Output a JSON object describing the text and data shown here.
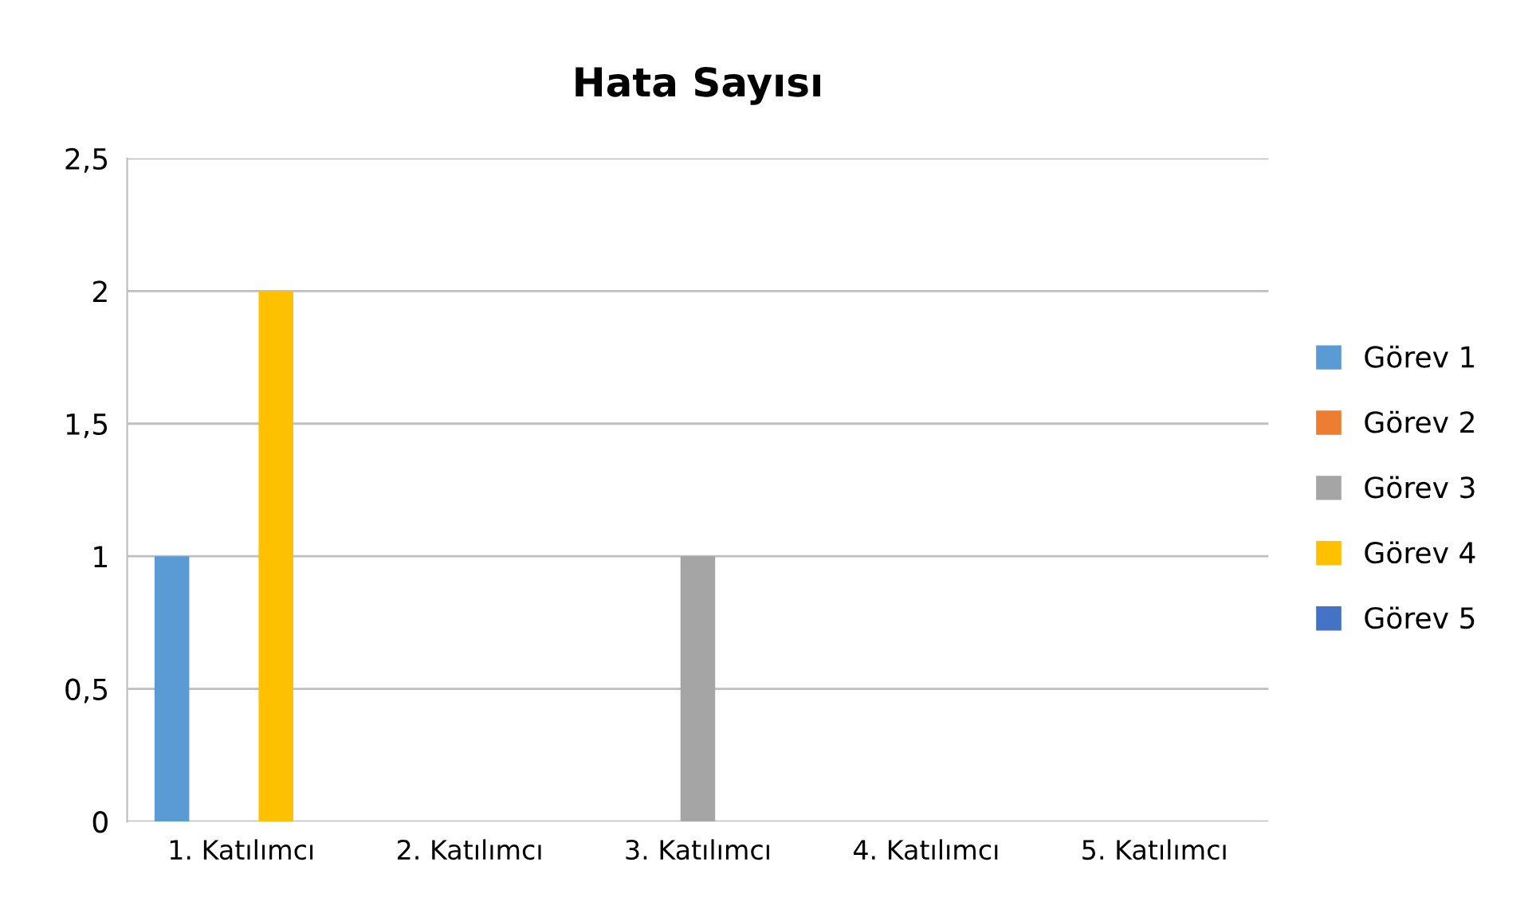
{
  "chart_data": {
    "type": "bar",
    "title": "Hata Sayısı",
    "categories": [
      "1. Katılımcı",
      "2. Katılımcı",
      "3. Katılımcı",
      "4. Katılımcı",
      "5. Katılımcı"
    ],
    "series": [
      {
        "name": "Görev 1",
        "color": "#5b9bd5",
        "values": [
          1,
          0,
          0,
          0,
          0
        ]
      },
      {
        "name": "Görev 2",
        "color": "#ed7d31",
        "values": [
          0,
          0,
          0,
          0,
          0
        ]
      },
      {
        "name": "Görev 3",
        "color": "#a5a5a5",
        "values": [
          0,
          0,
          1,
          0,
          0
        ]
      },
      {
        "name": "Görev 4",
        "color": "#ffc000",
        "values": [
          2,
          0,
          0,
          0,
          0
        ]
      },
      {
        "name": "Görev 5",
        "color": "#4472c4",
        "values": [
          0,
          0,
          0,
          0,
          0
        ]
      }
    ],
    "ylim": [
      0,
      2.5
    ],
    "yticks": [
      0,
      {
        "value": 0.5,
        "label": "0,5"
      },
      1,
      {
        "value": 1.5,
        "label": "1,5"
      },
      2,
      {
        "value": 2.5,
        "label": "2,5"
      }
    ],
    "grid": "y",
    "legend": "right"
  }
}
